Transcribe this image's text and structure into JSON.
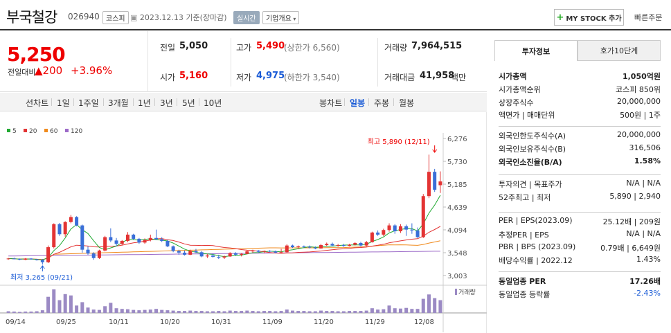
{
  "header": {
    "name": "부국철강",
    "code": "026940",
    "market": "코스피",
    "date_text": "2023.12.13 기준(장마감)",
    "realtime": "실시간",
    "company_info": "기업개요",
    "mystock": "MY STOCK 추가",
    "quick_order": "빠른주문"
  },
  "price": {
    "current": "5,250",
    "change_label": "전일대비",
    "change": "▲200",
    "change_pct": "+3.96%"
  },
  "quote": {
    "prev_label": "전일",
    "prev": "5,050",
    "high_label": "고가",
    "high": "5,490",
    "upper_limit": "(상한가 6,560)",
    "volume_label": "거래량",
    "volume": "7,964,515",
    "open_label": "시가",
    "open": "5,160",
    "low_label": "저가",
    "low": "4,975",
    "lower_limit": "(하한가 3,540)",
    "amount_label": "거래대금",
    "amount": "41,958",
    "amount_unit": "백만"
  },
  "toolbar": {
    "line_chart": "선차트",
    "periods": [
      "1일",
      "1주일",
      "3개월",
      "1년",
      "3년",
      "5년",
      "10년"
    ],
    "candle": "봉차트",
    "candle_periods": [
      "일봉",
      "주봉",
      "월봉"
    ]
  },
  "chart": {
    "legend": [
      {
        "label": "5",
        "color": "#22aa33"
      },
      {
        "label": "20",
        "color": "#e33333"
      },
      {
        "label": "60",
        "color": "#f08a1c"
      },
      {
        "label": "120",
        "color": "#9c6ac8"
      }
    ],
    "y_ticks": [
      "6,276",
      "5,730",
      "5,185",
      "4,639",
      "4,094",
      "3,548",
      "3,003"
    ],
    "x_ticks": [
      "09/14",
      "09/25",
      "10/11",
      "10/20",
      "10/31",
      "11/09",
      "11/20",
      "11/29",
      "12/08"
    ],
    "high_note": "최고 5,890 (12/11)",
    "low_note": "최저 3,265 (09/21)",
    "volume_label": "거래량",
    "up_color": "#e33333",
    "down_color": "#3a6fd8"
  },
  "chart_data": {
    "type": "candlestick",
    "ohlc": [
      [
        3400,
        3420,
        3380,
        3410
      ],
      [
        3410,
        3430,
        3390,
        3400
      ],
      [
        3400,
        3410,
        3370,
        3380
      ],
      [
        3380,
        3420,
        3370,
        3410
      ],
      [
        3410,
        3420,
        3380,
        3390
      ],
      [
        3390,
        3400,
        3360,
        3370
      ],
      [
        3370,
        3400,
        3265,
        3320
      ],
      [
        3320,
        3720,
        3300,
        3680
      ],
      [
        3680,
        4250,
        3650,
        4230
      ],
      [
        4230,
        4260,
        3950,
        3990
      ],
      [
        3990,
        4300,
        3930,
        4280
      ],
      [
        4280,
        4450,
        4250,
        4400
      ],
      [
        4400,
        4420,
        4180,
        4200
      ],
      [
        4200,
        4220,
        3550,
        3620
      ],
      [
        3620,
        3700,
        3500,
        3530
      ],
      [
        3530,
        3560,
        3380,
        3420
      ],
      [
        3420,
        3620,
        3400,
        3600
      ],
      [
        3600,
        3950,
        3580,
        3920
      ],
      [
        3920,
        4130,
        3800,
        3840
      ],
      [
        3840,
        3900,
        3700,
        3760
      ],
      [
        3760,
        3850,
        3720,
        3830
      ],
      [
        3830,
        4040,
        3800,
        3980
      ],
      [
        3980,
        4000,
        3850,
        3880
      ],
      [
        3880,
        3900,
        3760,
        3790
      ],
      [
        3790,
        3890,
        3760,
        3850
      ],
      [
        3850,
        3980,
        3820,
        3900
      ],
      [
        3900,
        4100,
        3850,
        3870
      ],
      [
        3870,
        3920,
        3800,
        3830
      ],
      [
        3830,
        3860,
        3680,
        3700
      ],
      [
        3700,
        3720,
        3560,
        3590
      ],
      [
        3590,
        3620,
        3500,
        3550
      ],
      [
        3550,
        3600,
        3480,
        3500
      ],
      [
        3500,
        3620,
        3490,
        3590
      ],
      [
        3590,
        3640,
        3540,
        3560
      ],
      [
        3560,
        3590,
        3440,
        3460
      ],
      [
        3460,
        3520,
        3420,
        3480
      ],
      [
        3480,
        3530,
        3430,
        3450
      ],
      [
        3450,
        3500,
        3400,
        3430
      ],
      [
        3430,
        3480,
        3400,
        3460
      ],
      [
        3460,
        3560,
        3450,
        3540
      ],
      [
        3540,
        3560,
        3480,
        3500
      ],
      [
        3500,
        3540,
        3460,
        3520
      ],
      [
        3520,
        3600,
        3510,
        3580
      ],
      [
        3580,
        3620,
        3550,
        3600
      ],
      [
        3600,
        3610,
        3550,
        3570
      ],
      [
        3570,
        3600,
        3540,
        3590
      ],
      [
        3590,
        3610,
        3560,
        3580
      ],
      [
        3580,
        3600,
        3530,
        3550
      ],
      [
        3550,
        3640,
        3530,
        3560
      ],
      [
        3560,
        3750,
        3550,
        3720
      ],
      [
        3720,
        3740,
        3660,
        3680
      ],
      [
        3680,
        3720,
        3640,
        3700
      ],
      [
        3700,
        3720,
        3660,
        3690
      ],
      [
        3690,
        3720,
        3650,
        3670
      ],
      [
        3670,
        3700,
        3630,
        3650
      ],
      [
        3650,
        3760,
        3640,
        3730
      ],
      [
        3730,
        3790,
        3700,
        3760
      ],
      [
        3760,
        3790,
        3700,
        3720
      ],
      [
        3720,
        3760,
        3690,
        3730
      ],
      [
        3730,
        3760,
        3690,
        3710
      ],
      [
        3710,
        3760,
        3700,
        3740
      ],
      [
        3740,
        3800,
        3720,
        3780
      ],
      [
        3780,
        3810,
        3700,
        3720
      ],
      [
        3720,
        3830,
        3700,
        3800
      ],
      [
        3800,
        4050,
        3790,
        4030
      ],
      [
        4030,
        4080,
        3950,
        3980
      ],
      [
        3980,
        4120,
        3940,
        4090
      ],
      [
        4090,
        4250,
        4050,
        4200
      ],
      [
        4200,
        4230,
        4000,
        4060
      ],
      [
        4060,
        4230,
        4020,
        4180
      ],
      [
        4180,
        4220,
        3950,
        4100
      ],
      [
        4100,
        4250,
        4000,
        4080
      ],
      [
        4080,
        4150,
        3900,
        3920
      ],
      [
        3920,
        4950,
        3900,
        4900
      ],
      [
        4900,
        5890,
        4850,
        5480
      ],
      [
        5480,
        5550,
        5000,
        5050
      ],
      [
        5160,
        5490,
        4975,
        5250
      ]
    ],
    "volume": [
      5,
      4,
      3,
      4,
      4,
      5,
      8,
      48,
      70,
      38,
      56,
      52,
      22,
      32,
      16,
      10,
      9,
      20,
      30,
      14,
      12,
      11,
      9,
      8,
      9,
      10,
      12,
      9,
      8,
      7,
      6,
      6,
      7,
      6,
      6,
      5,
      5,
      6,
      5,
      7,
      6,
      6,
      7,
      6,
      5,
      6,
      6,
      5,
      6,
      10,
      7,
      6,
      6,
      5,
      5,
      7,
      6,
      6,
      5,
      5,
      6,
      6,
      6,
      7,
      14,
      10,
      11,
      22,
      14,
      13,
      15,
      12,
      12,
      42,
      55,
      44,
      38
    ],
    "y_range": [
      3003,
      6276
    ],
    "x_ticks": [
      "09/14",
      "09/25",
      "10/11",
      "10/20",
      "10/31",
      "11/09",
      "11/20",
      "11/29",
      "12/08"
    ]
  },
  "side": {
    "tab_active": "투자정보",
    "tab_other": "호가10단계",
    "sec1": [
      {
        "l": "시가총액",
        "r": "1,050억원",
        "bold": true
      },
      {
        "l": "시가총액순위",
        "r": "코스피 850위"
      },
      {
        "l": "상장주식수",
        "r": "20,000,000"
      },
      {
        "l": "액면가 | 매매단위",
        "r": "500원 | 1주"
      }
    ],
    "sec2": [
      {
        "l": "외국인한도주식수(A)",
        "r": "20,000,000"
      },
      {
        "l": "외국인보유주식수(B)",
        "r": "316,506"
      },
      {
        "l": "외국인소진율(B/A)",
        "r": "1.58%",
        "bold": true
      }
    ],
    "sec3": [
      {
        "l": "투자의견 | 목표주가",
        "r": "N/A | N/A"
      },
      {
        "l": "52주최고 | 최저",
        "r": "5,890 | 2,940"
      }
    ],
    "sec4": [
      {
        "l": "PER | EPS(2023.09)",
        "r": "25.12배 | 209원"
      },
      {
        "l": "추정PER | EPS",
        "r": "N/A | N/A"
      },
      {
        "l": "PBR | BPS (2023.09)",
        "r": "0.79배 | 6,649원"
      },
      {
        "l": "배당수익률 | 2022.12",
        "r": "1.43%"
      }
    ],
    "sec5": [
      {
        "l": "동일업종 PER",
        "r": "17.26배",
        "bold": true
      },
      {
        "l": "동일업종 등락률",
        "r": "-2.43%",
        "blue": true
      }
    ]
  }
}
